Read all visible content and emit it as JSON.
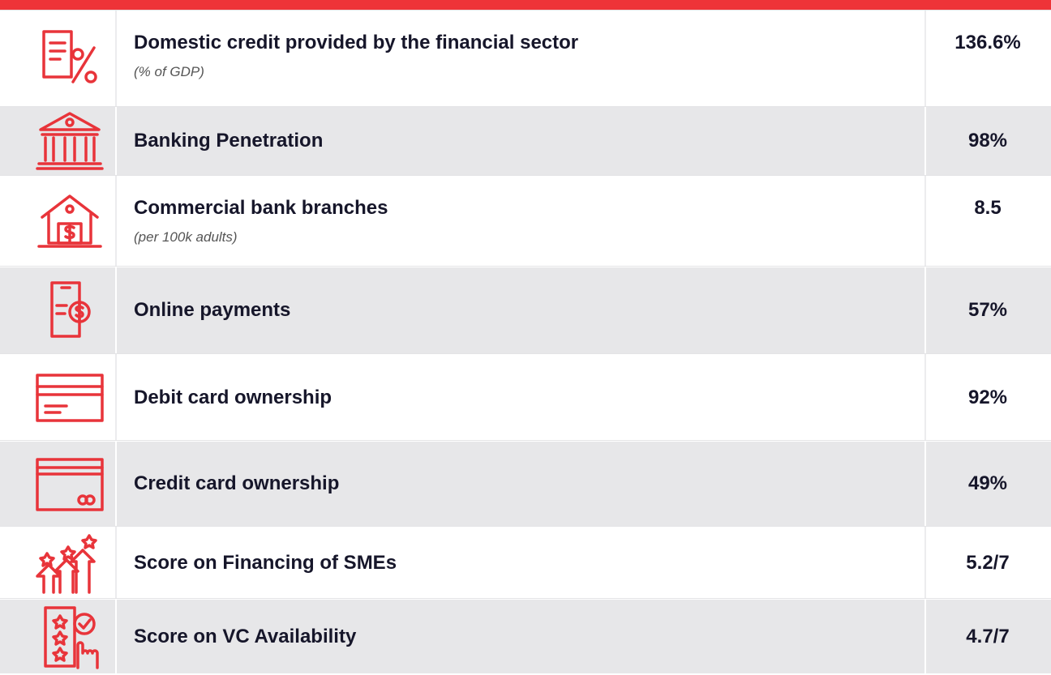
{
  "rows": [
    {
      "label": "Domestic credit provided by the financial sector",
      "note": "(% of GDP)",
      "value": "136.6%"
    },
    {
      "label": "Banking Penetration",
      "value": "98%"
    },
    {
      "label": "Commercial bank branches",
      "note": "(per 100k adults)",
      "value": "8.5"
    },
    {
      "label": "Online payments",
      "value": "57%"
    },
    {
      "label": "Debit card ownership",
      "value": "92%"
    },
    {
      "label": "Credit card ownership",
      "value": "49%"
    },
    {
      "label": "Score on Financing of SMEs",
      "value": "5.2/7"
    },
    {
      "label": "Score on VC Availability",
      "value": "4.7/7"
    }
  ]
}
